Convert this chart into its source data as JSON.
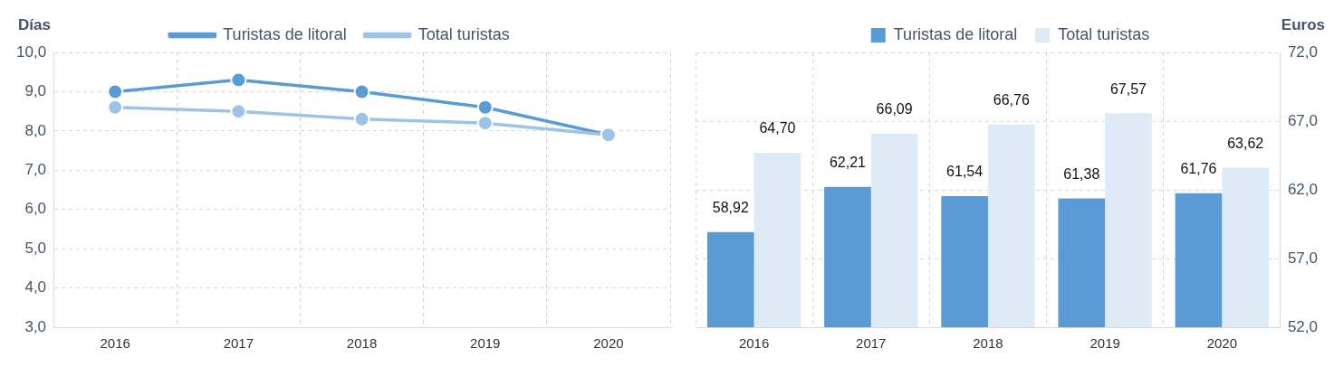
{
  "chart_data": [
    {
      "type": "line",
      "ylabel": "Días",
      "categories": [
        "2016",
        "2017",
        "2018",
        "2019",
        "2020"
      ],
      "series": [
        {
          "name": "Turistas de litoral",
          "color": "#5b9bd5",
          "values": [
            9.0,
            9.3,
            9.0,
            8.6,
            7.9
          ]
        },
        {
          "name": "Total turistas",
          "color": "#9dc3e6",
          "values": [
            8.6,
            8.5,
            8.3,
            8.2,
            7.9
          ]
        }
      ],
      "ylim": [
        3,
        10
      ],
      "yticks": [
        {
          "value": 3,
          "label": "3,0"
        },
        {
          "value": 4,
          "label": "4,0"
        },
        {
          "value": 5,
          "label": "5,0"
        },
        {
          "value": 6,
          "label": "6,0"
        },
        {
          "value": 7,
          "label": "7,0"
        },
        {
          "value": 8,
          "label": "8,0"
        },
        {
          "value": 9,
          "label": "9,0"
        },
        {
          "value": 10,
          "label": "10,0"
        }
      ],
      "grid": true,
      "legend": "top",
      "marker": "circle",
      "line_style": "solid"
    },
    {
      "type": "bar",
      "y2label": "Euros",
      "categories": [
        "2016",
        "2017",
        "2018",
        "2019",
        "2020"
      ],
      "series": [
        {
          "name": "Turistas de litoral",
          "color": "#5b9bd5",
          "axis": "y2",
          "values": [
            58.92,
            62.21,
            61.54,
            61.38,
            61.76
          ],
          "value_labels": [
            "58,92",
            "62,21",
            "61,54",
            "61,38",
            "61,76"
          ]
        },
        {
          "name": "Total turistas",
          "color": "#deeaf6",
          "axis": "y2",
          "values": [
            64.7,
            66.09,
            66.76,
            67.57,
            63.62
          ],
          "value_labels": [
            "64,70",
            "66,09",
            "66,76",
            "67,57",
            "63,62"
          ]
        }
      ],
      "y2lim": [
        52,
        72
      ],
      "y2ticks": [
        {
          "value": 52,
          "label": "52,0"
        },
        {
          "value": 57,
          "label": "57,0"
        },
        {
          "value": 62,
          "label": "62,0"
        },
        {
          "value": 67,
          "label": "67,0"
        },
        {
          "value": 72,
          "label": "72,0"
        }
      ],
      "grid": true,
      "legend": "top"
    }
  ]
}
